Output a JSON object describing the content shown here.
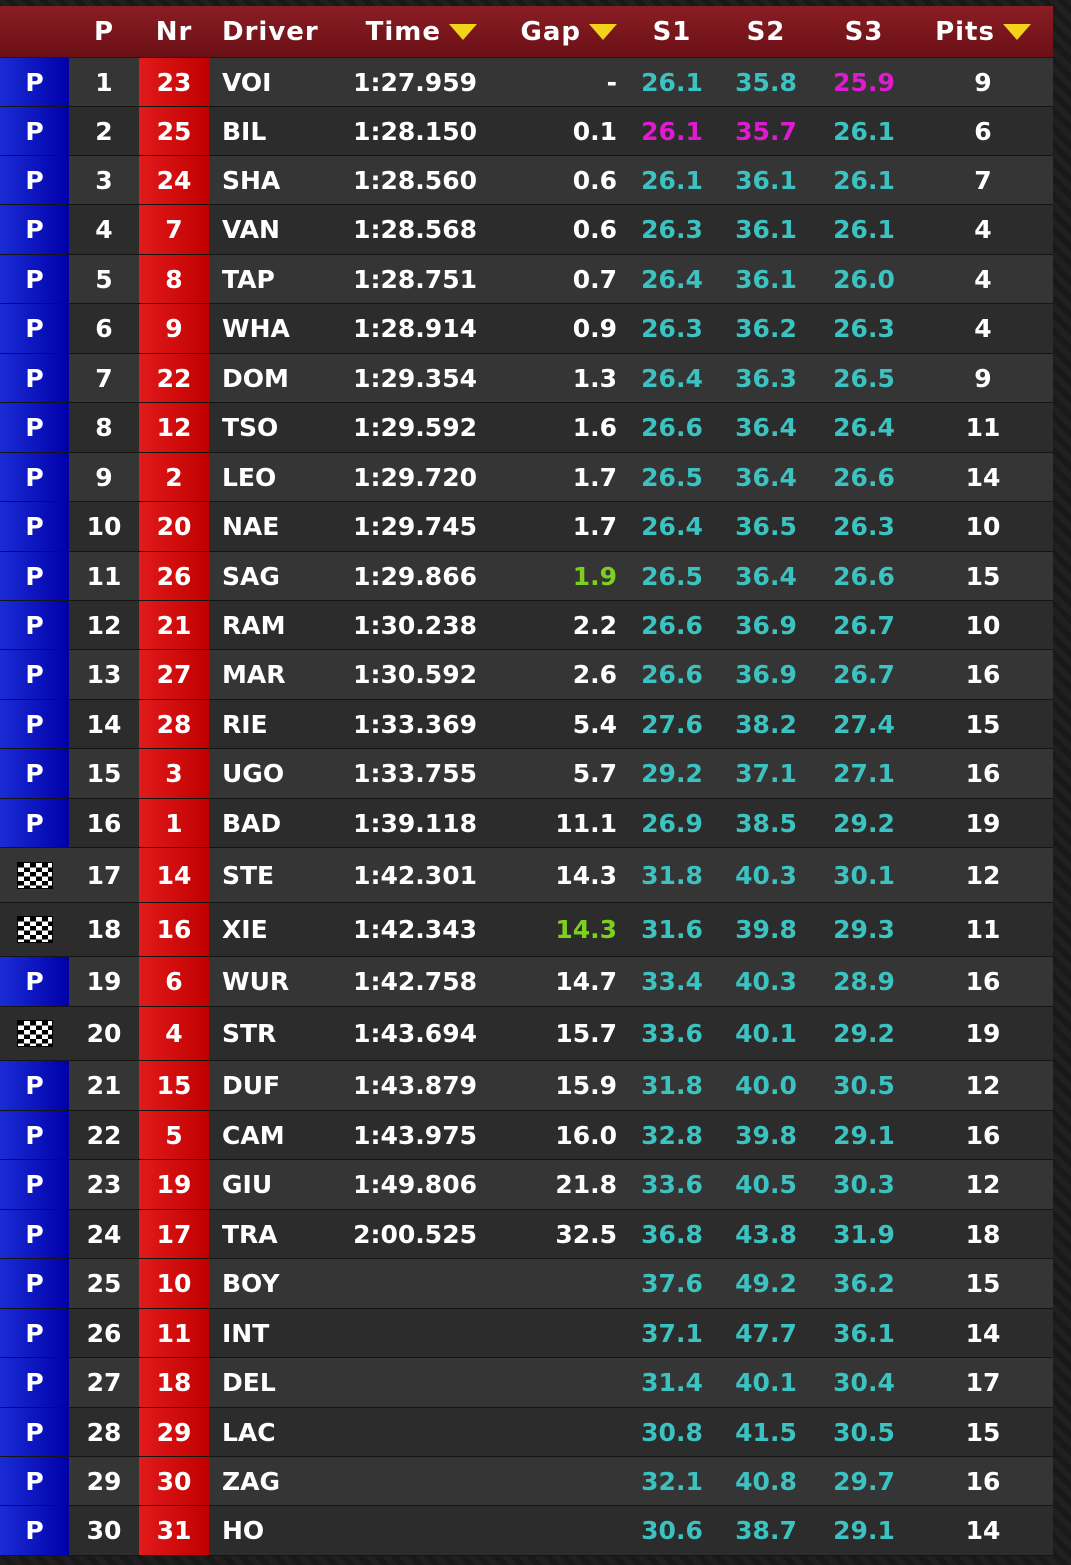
{
  "colors": {
    "header_bg": "#7a1820",
    "pit_status": "#0a0ac8",
    "number_bg": "#d40000",
    "sector_normal": "#3cc2c0",
    "sector_best": "#e01ad0",
    "gap_highlight": "#7dd01e",
    "sort_arrow": "#f2d21b"
  },
  "columns": {
    "pos": "P",
    "nr": "Nr",
    "driver": "Driver",
    "time": "Time",
    "gap": "Gap",
    "s1": "S1",
    "s2": "S2",
    "s3": "S3",
    "pits": "Pits"
  },
  "rows": [
    {
      "status": "P",
      "pos": "1",
      "nr": "23",
      "driver": "VOI",
      "time": "1:27.959",
      "gap": "-",
      "s1": "26.1",
      "s2": "35.8",
      "s3": "25.9",
      "pits": "9",
      "best": [
        "s3"
      ]
    },
    {
      "status": "P",
      "pos": "2",
      "nr": "25",
      "driver": "BIL",
      "time": "1:28.150",
      "gap": "0.1",
      "s1": "26.1",
      "s2": "35.7",
      "s3": "26.1",
      "pits": "6",
      "best": [
        "s1",
        "s2"
      ]
    },
    {
      "status": "P",
      "pos": "3",
      "nr": "24",
      "driver": "SHA",
      "time": "1:28.560",
      "gap": "0.6",
      "s1": "26.1",
      "s2": "36.1",
      "s3": "26.1",
      "pits": "7"
    },
    {
      "status": "P",
      "pos": "4",
      "nr": "7",
      "driver": "VAN",
      "time": "1:28.568",
      "gap": "0.6",
      "s1": "26.3",
      "s2": "36.1",
      "s3": "26.1",
      "pits": "4"
    },
    {
      "status": "P",
      "pos": "5",
      "nr": "8",
      "driver": "TAP",
      "time": "1:28.751",
      "gap": "0.7",
      "s1": "26.4",
      "s2": "36.1",
      "s3": "26.0",
      "pits": "4"
    },
    {
      "status": "P",
      "pos": "6",
      "nr": "9",
      "driver": "WHA",
      "time": "1:28.914",
      "gap": "0.9",
      "s1": "26.3",
      "s2": "36.2",
      "s3": "26.3",
      "pits": "4"
    },
    {
      "status": "P",
      "pos": "7",
      "nr": "22",
      "driver": "DOM",
      "time": "1:29.354",
      "gap": "1.3",
      "s1": "26.4",
      "s2": "36.3",
      "s3": "26.5",
      "pits": "9"
    },
    {
      "status": "P",
      "pos": "8",
      "nr": "12",
      "driver": "TSO",
      "time": "1:29.592",
      "gap": "1.6",
      "s1": "26.6",
      "s2": "36.4",
      "s3": "26.4",
      "pits": "11"
    },
    {
      "status": "P",
      "pos": "9",
      "nr": "2",
      "driver": "LEO",
      "time": "1:29.720",
      "gap": "1.7",
      "s1": "26.5",
      "s2": "36.4",
      "s3": "26.6",
      "pits": "14"
    },
    {
      "status": "P",
      "pos": "10",
      "nr": "20",
      "driver": "NAE",
      "time": "1:29.745",
      "gap": "1.7",
      "s1": "26.4",
      "s2": "36.5",
      "s3": "26.3",
      "pits": "10"
    },
    {
      "status": "P",
      "pos": "11",
      "nr": "26",
      "driver": "SAG",
      "time": "1:29.866",
      "gap": "1.9",
      "s1": "26.5",
      "s2": "36.4",
      "s3": "26.6",
      "pits": "15",
      "gap_green": true
    },
    {
      "status": "P",
      "pos": "12",
      "nr": "21",
      "driver": "RAM",
      "time": "1:30.238",
      "gap": "2.2",
      "s1": "26.6",
      "s2": "36.9",
      "s3": "26.7",
      "pits": "10"
    },
    {
      "status": "P",
      "pos": "13",
      "nr": "27",
      "driver": "MAR",
      "time": "1:30.592",
      "gap": "2.6",
      "s1": "26.6",
      "s2": "36.9",
      "s3": "26.7",
      "pits": "16"
    },
    {
      "status": "P",
      "pos": "14",
      "nr": "28",
      "driver": "RIE",
      "time": "1:33.369",
      "gap": "5.4",
      "s1": "27.6",
      "s2": "38.2",
      "s3": "27.4",
      "pits": "15"
    },
    {
      "status": "P",
      "pos": "15",
      "nr": "3",
      "driver": "UGO",
      "time": "1:33.755",
      "gap": "5.7",
      "s1": "29.2",
      "s2": "37.1",
      "s3": "27.1",
      "pits": "16"
    },
    {
      "status": "P",
      "pos": "16",
      "nr": "1",
      "driver": "BAD",
      "time": "1:39.118",
      "gap": "11.1",
      "s1": "26.9",
      "s2": "38.5",
      "s3": "29.2",
      "pits": "19"
    },
    {
      "status": "flag",
      "pos": "17",
      "nr": "14",
      "driver": "STE",
      "time": "1:42.301",
      "gap": "14.3",
      "s1": "31.8",
      "s2": "40.3",
      "s3": "30.1",
      "pits": "12"
    },
    {
      "status": "flag",
      "pos": "18",
      "nr": "16",
      "driver": "XIE",
      "time": "1:42.343",
      "gap": "14.3",
      "s1": "31.6",
      "s2": "39.8",
      "s3": "29.3",
      "pits": "11",
      "gap_green": true
    },
    {
      "status": "P",
      "pos": "19",
      "nr": "6",
      "driver": "WUR",
      "time": "1:42.758",
      "gap": "14.7",
      "s1": "33.4",
      "s2": "40.3",
      "s3": "28.9",
      "pits": "16"
    },
    {
      "status": "flag",
      "pos": "20",
      "nr": "4",
      "driver": "STR",
      "time": "1:43.694",
      "gap": "15.7",
      "s1": "33.6",
      "s2": "40.1",
      "s3": "29.2",
      "pits": "19"
    },
    {
      "status": "P",
      "pos": "21",
      "nr": "15",
      "driver": "DUF",
      "time": "1:43.879",
      "gap": "15.9",
      "s1": "31.8",
      "s2": "40.0",
      "s3": "30.5",
      "pits": "12"
    },
    {
      "status": "P",
      "pos": "22",
      "nr": "5",
      "driver": "CAM",
      "time": "1:43.975",
      "gap": "16.0",
      "s1": "32.8",
      "s2": "39.8",
      "s3": "29.1",
      "pits": "16"
    },
    {
      "status": "P",
      "pos": "23",
      "nr": "19",
      "driver": "GIU",
      "time": "1:49.806",
      "gap": "21.8",
      "s1": "33.6",
      "s2": "40.5",
      "s3": "30.3",
      "pits": "12"
    },
    {
      "status": "P",
      "pos": "24",
      "nr": "17",
      "driver": "TRA",
      "time": "2:00.525",
      "gap": "32.5",
      "s1": "36.8",
      "s2": "43.8",
      "s3": "31.9",
      "pits": "18"
    },
    {
      "status": "P",
      "pos": "25",
      "nr": "10",
      "driver": "BOY",
      "time": "",
      "gap": "",
      "s1": "37.6",
      "s2": "49.2",
      "s3": "36.2",
      "pits": "15"
    },
    {
      "status": "P",
      "pos": "26",
      "nr": "11",
      "driver": "INT",
      "time": "",
      "gap": "",
      "s1": "37.1",
      "s2": "47.7",
      "s3": "36.1",
      "pits": "14"
    },
    {
      "status": "P",
      "pos": "27",
      "nr": "18",
      "driver": "DEL",
      "time": "",
      "gap": "",
      "s1": "31.4",
      "s2": "40.1",
      "s3": "30.4",
      "pits": "17"
    },
    {
      "status": "P",
      "pos": "28",
      "nr": "29",
      "driver": "LAC",
      "time": "",
      "gap": "",
      "s1": "30.8",
      "s2": "41.5",
      "s3": "30.5",
      "pits": "15"
    },
    {
      "status": "P",
      "pos": "29",
      "nr": "30",
      "driver": "ZAG",
      "time": "",
      "gap": "",
      "s1": "32.1",
      "s2": "40.8",
      "s3": "29.7",
      "pits": "16"
    },
    {
      "status": "P",
      "pos": "30",
      "nr": "31",
      "driver": "HO",
      "time": "",
      "gap": "",
      "s1": "30.6",
      "s2": "38.7",
      "s3": "29.1",
      "pits": "14"
    }
  ]
}
